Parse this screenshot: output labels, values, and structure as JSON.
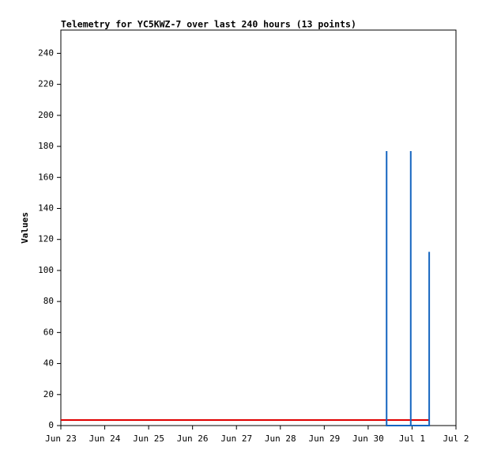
{
  "chart_data": {
    "type": "line",
    "title": "Telemetry for YC5KWZ-7 over last 240 hours (13 points)",
    "y_label": "Values",
    "x": [
      0,
      2,
      4,
      6,
      7.42,
      7.42,
      7.42,
      7.97,
      7.97,
      7.97,
      8.39,
      8.39,
      8.39
    ],
    "xlim": [
      0,
      9
    ],
    "xticks": [
      {
        "value": 0,
        "label": "Jun 23"
      },
      {
        "value": 1,
        "label": "Jun 24"
      },
      {
        "value": 2,
        "label": "Jun 25"
      },
      {
        "value": 3,
        "label": "Jun 26"
      },
      {
        "value": 4,
        "label": "Jun 27"
      },
      {
        "value": 5,
        "label": "Jun 28"
      },
      {
        "value": 6,
        "label": "Jun 29"
      },
      {
        "value": 7,
        "label": "Jun 30"
      },
      {
        "value": 8,
        "label": "Jul 1"
      },
      {
        "value": 9,
        "label": "Jul 2"
      }
    ],
    "ylim": [
      0,
      255
    ],
    "yticks": [
      0,
      20,
      40,
      60,
      80,
      100,
      120,
      140,
      160,
      180,
      200,
      220,
      240
    ],
    "grid": false,
    "series": [
      {
        "color": "#e00000",
        "values": [
          3.6,
          3.6,
          3.6,
          3.6,
          3.6,
          3.6,
          3.6,
          3.6,
          3.6,
          3.6,
          3.6,
          3.6,
          3.6
        ]
      },
      {
        "color": "#1565c0",
        "values": [
          null,
          null,
          null,
          null,
          0,
          177,
          0,
          0,
          177,
          0,
          0,
          112,
          0
        ]
      }
    ]
  }
}
